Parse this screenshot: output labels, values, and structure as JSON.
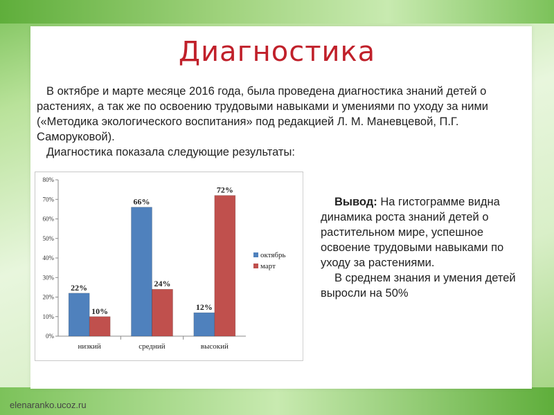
{
  "slide": {
    "title": "Диагностика",
    "intro_paragraph_1": "В октябре и марте месяце 2016 года, была проведена диагностика знаний детей о растениях, а так же по освоению трудовыми навыками и умениями по уходу за ними («Методика экологического воспитания» под редакцией Л. М. Маневцевой, П.Г. Саморуковой).",
    "intro_paragraph_2": "Диагностика показала следующие результаты:",
    "conclusion_label": "Вывод:",
    "conclusion_text": " На гистограмме видна динамика роста знаний детей о растительном мире, успешное освоение трудовыми навыками по уходу за растениями.",
    "conclusion_paragraph_2": "В среднем знания и умения детей выросли на 50%",
    "footer": "elenaranko.ucoz.ru"
  },
  "colors": {
    "title": "#c0202a",
    "series_october": "#4f81bd",
    "series_march": "#c0504d"
  },
  "chart_data": {
    "type": "bar",
    "categories": [
      "низкий",
      "средний",
      "высокий"
    ],
    "series": [
      {
        "name": "октябрь",
        "values": [
          22,
          66,
          12
        ],
        "labels": [
          "22%",
          "66%",
          "12%"
        ]
      },
      {
        "name": "март",
        "values": [
          10,
          24,
          72
        ],
        "labels": [
          "10%",
          "24%",
          "72%"
        ]
      }
    ],
    "yticks": [
      "0%",
      "10%",
      "20%",
      "30%",
      "40%",
      "50%",
      "60%",
      "70%",
      "80%"
    ],
    "ylim": [
      0,
      80
    ],
    "legend_position": "right",
    "grid": false
  }
}
